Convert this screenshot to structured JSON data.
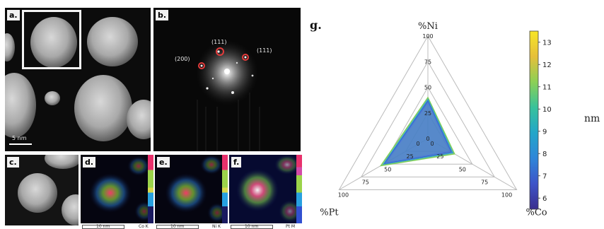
{
  "panels": {
    "a": {
      "label": "a.",
      "scale_text": "5  nm"
    },
    "b": {
      "label": "b.",
      "spot_labels": [
        "(111)",
        "(200)",
        "(111)"
      ]
    },
    "c": {
      "label": "c."
    },
    "d": {
      "label": "d.",
      "scale_text": "10  nm",
      "element": "Co K"
    },
    "e": {
      "label": "e.",
      "scale_text": "10  nm",
      "element": "Ni K"
    },
    "f": {
      "label": "f.",
      "scale_text": "10  nm",
      "element": "Pt M"
    }
  },
  "chart_data": {
    "type": "radar",
    "panel_label": "g.",
    "axes": [
      "%Ni",
      "%Co",
      "%Pt"
    ],
    "ticks": [
      0,
      25,
      50,
      75,
      100
    ],
    "rmax": 100,
    "series": [
      {
        "values": [
          40,
          30,
          53
        ],
        "color": "#7fcf5a"
      },
      {
        "values": [
          38,
          28,
          50
        ],
        "color": "#2f9ad0"
      },
      {
        "values": [
          36,
          26,
          48
        ],
        "color": "#3a58c8"
      },
      {
        "values": [
          35,
          25,
          47
        ],
        "color": "#4f7fd6"
      }
    ],
    "colorbar": {
      "label": "nm",
      "min": 5.5,
      "max": 13.5,
      "ticks": [
        6,
        7,
        8,
        9,
        10,
        11,
        12,
        13
      ],
      "colors": [
        "#3b2e8e",
        "#3e54c8",
        "#2f86d9",
        "#23a6c9",
        "#38c29b",
        "#8cd055",
        "#e6bf3a",
        "#f7e627"
      ]
    }
  }
}
